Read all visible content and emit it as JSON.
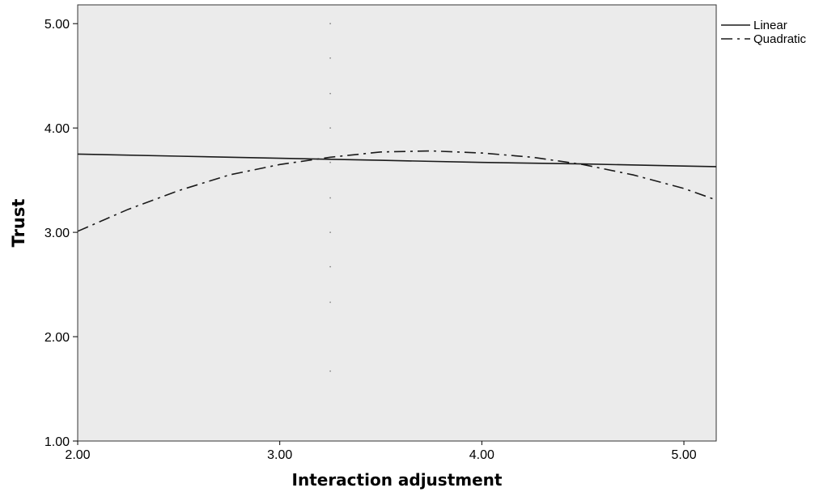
{
  "chart_data": {
    "type": "line",
    "title": "",
    "xlabel": "Interaction adjustment",
    "ylabel": "Trust",
    "xlim": [
      2.0,
      5.16
    ],
    "ylim": [
      1.0,
      5.18
    ],
    "xticks": [
      2.0,
      3.0,
      4.0,
      5.0
    ],
    "xtick_labels": [
      "2.00",
      "3.00",
      "4.00",
      "5.00"
    ],
    "yticks": [
      1.0,
      2.0,
      3.0,
      4.0,
      5.0
    ],
    "ytick_labels": [
      "1.00",
      "2.00",
      "3.00",
      "4.00",
      "5.00"
    ],
    "grid": false,
    "legend_position": "top-right, outside plot",
    "plot_background": "#ebebeb",
    "line_color": "#1a1a1a",
    "series": [
      {
        "name": "Linear",
        "style": "solid",
        "x": [
          2.0,
          2.5,
          3.0,
          3.5,
          4.0,
          4.5,
          5.0,
          5.16
        ],
        "y": [
          3.75,
          3.73,
          3.71,
          3.69,
          3.67,
          3.655,
          3.635,
          3.63
        ]
      },
      {
        "name": "Quadratic",
        "style": "dash-dot",
        "x": [
          2.0,
          2.25,
          2.5,
          2.75,
          3.0,
          3.25,
          3.5,
          3.75,
          4.0,
          4.25,
          4.5,
          4.75,
          5.0,
          5.16
        ],
        "y": [
          3.01,
          3.22,
          3.4,
          3.55,
          3.65,
          3.72,
          3.77,
          3.78,
          3.76,
          3.72,
          3.65,
          3.55,
          3.42,
          3.31
        ]
      }
    ],
    "reference_points": {
      "x": 3.25,
      "y": [
        5.0,
        4.67,
        4.33,
        4.0,
        3.67,
        3.33,
        3.0,
        2.67,
        2.33,
        1.67
      ]
    }
  }
}
